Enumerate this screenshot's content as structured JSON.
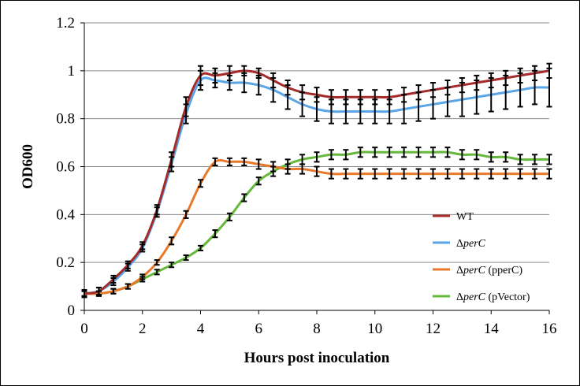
{
  "chart_data": {
    "type": "line",
    "title": "",
    "xlabel": "Hours post inoculation",
    "ylabel": "OD600",
    "xlim": [
      0,
      16
    ],
    "ylim": [
      0,
      1.2
    ],
    "xticks": [
      0,
      2,
      4,
      6,
      8,
      10,
      12,
      14,
      16
    ],
    "yticks": [
      0,
      0.2,
      0.4,
      0.6,
      0.8,
      1,
      1.2
    ],
    "ytick_labels": [
      "0",
      "0.2",
      "0.4",
      "0.6",
      "0.8",
      "1",
      "1.2"
    ],
    "grid": "horizontal",
    "legend_position": "lower-right",
    "x": [
      0,
      0.5,
      1,
      1.5,
      2,
      2.5,
      3,
      3.5,
      4,
      4.5,
      5,
      5.5,
      6,
      6.5,
      7,
      7.5,
      8,
      8.5,
      9,
      9.5,
      10,
      10.5,
      11,
      11.5,
      12,
      12.5,
      13,
      13.5,
      14,
      14.5,
      15,
      15.5,
      16
    ],
    "series": [
      {
        "name": "WT",
        "prefix": "WT",
        "italic": "",
        "suffix": "",
        "color": "#a52a2a",
        "values": [
          0.07,
          0.08,
          0.13,
          0.19,
          0.27,
          0.42,
          0.63,
          0.85,
          0.98,
          0.98,
          0.99,
          1.0,
          0.99,
          0.96,
          0.93,
          0.91,
          0.9,
          0.89,
          0.89,
          0.89,
          0.89,
          0.89,
          0.9,
          0.91,
          0.92,
          0.93,
          0.94,
          0.95,
          0.96,
          0.97,
          0.98,
          0.99,
          1.0
        ],
        "error": [
          0.015,
          0.015,
          0.015,
          0.015,
          0.015,
          0.02,
          0.03,
          0.04,
          0.04,
          0.03,
          0.03,
          0.02,
          0.02,
          0.03,
          0.03,
          0.03,
          0.03,
          0.03,
          0.03,
          0.03,
          0.03,
          0.03,
          0.03,
          0.03,
          0.03,
          0.03,
          0.03,
          0.03,
          0.03,
          0.03,
          0.03,
          0.03,
          0.03
        ]
      },
      {
        "name": "ΔperC",
        "prefix": "Δ",
        "italic": "perC",
        "suffix": "",
        "color": "#5aa5e6",
        "values": [
          0.07,
          0.08,
          0.12,
          0.18,
          0.26,
          0.41,
          0.61,
          0.82,
          0.96,
          0.96,
          0.95,
          0.95,
          0.94,
          0.92,
          0.89,
          0.86,
          0.84,
          0.83,
          0.83,
          0.83,
          0.83,
          0.83,
          0.84,
          0.85,
          0.86,
          0.87,
          0.88,
          0.89,
          0.9,
          0.91,
          0.92,
          0.93,
          0.93
        ],
        "error": [
          0.015,
          0.015,
          0.015,
          0.015,
          0.015,
          0.02,
          0.03,
          0.04,
          0.04,
          0.03,
          0.03,
          0.04,
          0.04,
          0.05,
          0.05,
          0.05,
          0.05,
          0.05,
          0.05,
          0.05,
          0.05,
          0.05,
          0.06,
          0.06,
          0.06,
          0.06,
          0.07,
          0.07,
          0.07,
          0.07,
          0.07,
          0.07,
          0.08
        ]
      },
      {
        "name": "ΔperC (pperC)",
        "prefix": "Δ",
        "italic": "perC",
        "suffix": " (pperC)",
        "color": "#e8782a",
        "values": [
          0.07,
          0.07,
          0.08,
          0.1,
          0.14,
          0.2,
          0.29,
          0.4,
          0.53,
          0.62,
          0.62,
          0.62,
          0.61,
          0.6,
          0.59,
          0.59,
          0.58,
          0.57,
          0.57,
          0.57,
          0.57,
          0.57,
          0.57,
          0.57,
          0.57,
          0.57,
          0.57,
          0.57,
          0.57,
          0.57,
          0.57,
          0.57,
          0.57
        ],
        "error": [
          0.01,
          0.01,
          0.01,
          0.01,
          0.01,
          0.01,
          0.015,
          0.015,
          0.015,
          0.015,
          0.015,
          0.015,
          0.02,
          0.02,
          0.02,
          0.02,
          0.02,
          0.02,
          0.02,
          0.02,
          0.02,
          0.02,
          0.02,
          0.02,
          0.02,
          0.02,
          0.02,
          0.02,
          0.02,
          0.02,
          0.02,
          0.02,
          0.02
        ]
      },
      {
        "name": "ΔperC (pVector)",
        "prefix": "Δ",
        "italic": "perC",
        "suffix": " (pVector)",
        "color": "#66b83a",
        "values": [
          0.07,
          0.07,
          0.08,
          0.1,
          0.13,
          0.16,
          0.19,
          0.22,
          0.26,
          0.32,
          0.39,
          0.47,
          0.54,
          0.58,
          0.61,
          0.63,
          0.64,
          0.65,
          0.65,
          0.66,
          0.66,
          0.66,
          0.66,
          0.66,
          0.66,
          0.66,
          0.65,
          0.65,
          0.64,
          0.64,
          0.63,
          0.63,
          0.63
        ],
        "error": [
          0.01,
          0.01,
          0.01,
          0.01,
          0.01,
          0.01,
          0.01,
          0.01,
          0.01,
          0.015,
          0.015,
          0.015,
          0.015,
          0.02,
          0.02,
          0.02,
          0.02,
          0.02,
          0.02,
          0.02,
          0.02,
          0.02,
          0.02,
          0.02,
          0.02,
          0.02,
          0.02,
          0.02,
          0.02,
          0.02,
          0.02,
          0.02,
          0.02
        ]
      }
    ]
  }
}
